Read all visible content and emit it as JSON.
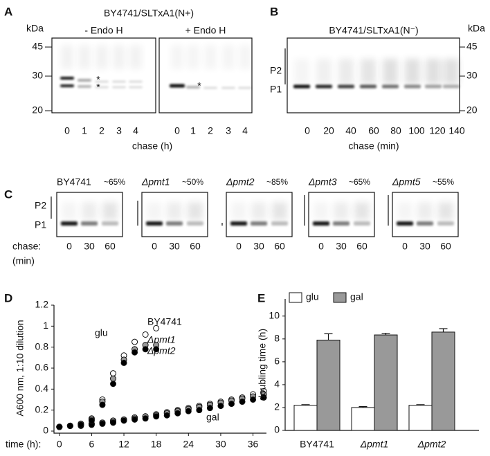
{
  "panels": {
    "A": {
      "label": "A",
      "title": "BY4741/SLTxA1(N+)",
      "unit": "kDa",
      "markers": [
        "45",
        "30",
        "20"
      ],
      "conditions": [
        "- Endo H",
        "+ Endo H"
      ],
      "lanes": [
        "0",
        "1",
        "2",
        "3",
        "4"
      ],
      "xlabel": "chase (h)",
      "asterisk": "*"
    },
    "B": {
      "label": "B",
      "title": "BY4741/SLTxA1(N⁻)",
      "unit": "kDa",
      "markers": [
        "45",
        "30",
        "20"
      ],
      "forms": [
        "P2",
        "P1"
      ],
      "lanes": [
        "0",
        "20",
        "40",
        "60",
        "80",
        "100",
        "120",
        "140"
      ],
      "xlabel": "chase (min)"
    },
    "C": {
      "label": "C",
      "strains": [
        {
          "name": "BY4741",
          "percent": "~65%"
        },
        {
          "name": "Δpmt1",
          "percent": "~50%"
        },
        {
          "name": "Δpmt2",
          "percent": "~85%"
        },
        {
          "name": "Δpmt3",
          "percent": "~65%"
        },
        {
          "name": "Δpmt5",
          "percent": "~55%"
        }
      ],
      "forms": [
        "P2",
        "P1"
      ],
      "lanes": [
        "0",
        "30",
        "60"
      ],
      "xlabel": [
        "chase:",
        "(min)"
      ]
    },
    "D": {
      "label": "D"
    },
    "E": {
      "label": "E"
    }
  },
  "chart_data": [
    {
      "type": "scatter",
      "ylabel": "A600 nm, 1:10 dilution",
      "xlabel": "time (h):",
      "annotations": [
        "glu",
        "gal"
      ],
      "x": [
        0,
        2,
        4,
        6,
        8,
        10,
        12,
        14,
        16,
        18,
        20,
        22,
        24,
        26,
        28,
        30,
        32,
        34,
        36,
        38
      ],
      "xlim": [
        -1,
        38.5
      ],
      "ylim": [
        0,
        1.2
      ],
      "xticks": [
        0,
        6,
        12,
        18,
        24,
        30,
        36
      ],
      "yticks": [
        0,
        0.2,
        0.4,
        0.6,
        0.8,
        1,
        1.2
      ],
      "series": [
        {
          "name": "BY4741",
          "color": "#ffffff",
          "glu": [
            0.04,
            0.05,
            0.07,
            0.12,
            0.3,
            0.55,
            0.72,
            0.85,
            0.92,
            0.98,
            null,
            null,
            null,
            null,
            null,
            null,
            null,
            null,
            null,
            null
          ],
          "gal": [
            0.04,
            0.05,
            0.06,
            0.07,
            0.08,
            0.1,
            0.11,
            0.13,
            0.14,
            0.16,
            0.18,
            0.2,
            0.22,
            0.24,
            0.26,
            0.28,
            0.3,
            0.32,
            0.35,
            0.38
          ]
        },
        {
          "name": "Δpmt1",
          "color": "#999999",
          "glu": [
            0.04,
            0.05,
            0.07,
            0.11,
            0.28,
            0.5,
            0.68,
            0.78,
            0.82,
            0.82,
            null,
            null,
            null,
            null,
            null,
            null,
            null,
            null,
            null,
            null
          ],
          "gal": [
            0.04,
            0.05,
            0.06,
            0.07,
            0.08,
            0.09,
            0.11,
            0.12,
            0.14,
            0.15,
            0.17,
            0.19,
            0.21,
            0.23,
            0.25,
            0.27,
            0.29,
            0.31,
            0.33,
            0.35
          ]
        },
        {
          "name": "Δpmt2",
          "color": "#000000",
          "glu": [
            0.04,
            0.05,
            0.06,
            0.1,
            0.25,
            0.45,
            0.65,
            0.75,
            0.78,
            0.78,
            null,
            null,
            null,
            null,
            null,
            null,
            null,
            null,
            null,
            null
          ],
          "gal": [
            0.04,
            0.05,
            0.05,
            0.06,
            0.07,
            0.08,
            0.1,
            0.11,
            0.12,
            0.14,
            0.15,
            0.17,
            0.19,
            0.2,
            0.22,
            0.24,
            0.26,
            0.28,
            0.3,
            0.32
          ]
        }
      ]
    },
    {
      "type": "bar",
      "ylabel": "doubling time (h)",
      "categories": [
        "BY4741",
        "Δpmt1",
        "Δpmt2"
      ],
      "ylim": [
        0,
        11.5
      ],
      "yticks": [
        0,
        2,
        4,
        6,
        8,
        10
      ],
      "legend": "top-left",
      "series": [
        {
          "name": "glu",
          "color": "#ffffff",
          "values": [
            2.2,
            2.0,
            2.2
          ],
          "errors": [
            0.05,
            0.08,
            0.05
          ]
        },
        {
          "name": "gal",
          "color": "#999999",
          "values": [
            7.9,
            8.35,
            8.6
          ],
          "errors": [
            0.55,
            0.15,
            0.3
          ]
        }
      ]
    }
  ]
}
